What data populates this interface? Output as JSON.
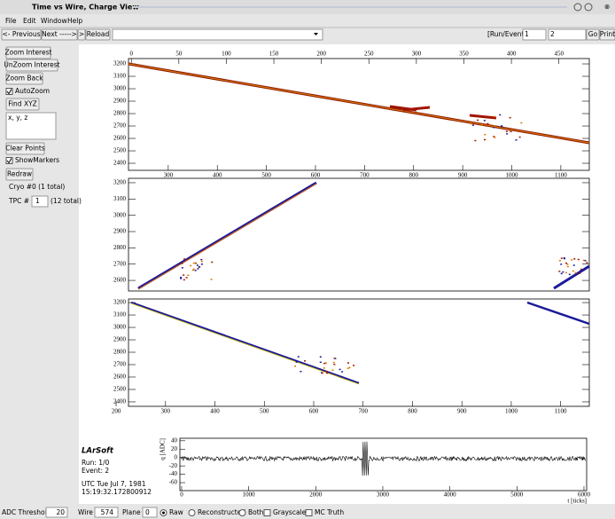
{
  "window": {
    "title": "Time vs Wire, Charge View"
  },
  "menu": [
    "File",
    "Edit",
    "Window",
    "Help"
  ],
  "toolbar": {
    "previous": "<- Previous",
    "next": "Next ----->",
    "forward": ">",
    "reload": "Reload",
    "run_event_label": "[Run/Event]=",
    "run": "1",
    "event": "2",
    "go": "Go",
    "print": "Print"
  },
  "side_panel": {
    "zoom_interest": "Zoom Interest",
    "unzoom_interest": "UnZoom Interest",
    "zoom_back": "Zoom Back",
    "auto_zoom": "AutoZoom",
    "find_xyz": "Find XYZ",
    "xyz_text": "x, y, z",
    "clear_points": "Clear Points",
    "show_markers": "ShowMarkers",
    "redraw": "Redraw",
    "cryo": "Cryo #0 (1 total)",
    "tpc_label": "TPC #",
    "tpc": "1",
    "tpc_total": "(12 total)"
  },
  "views": [
    {
      "xlim_top": [
        -3,
        482
      ],
      "xticks_top": [
        0,
        50,
        100,
        150,
        200,
        250,
        300,
        350,
        400,
        450
      ],
      "xlim": [
        219,
        1158
      ],
      "xticks": [
        300,
        400,
        500,
        600,
        700,
        800,
        900,
        1000,
        1100
      ],
      "ylim": [
        2343,
        3243
      ],
      "yticks": [
        2400,
        2500,
        2600,
        2700,
        2800,
        2900,
        3000,
        3100,
        3200
      ]
    },
    {
      "ylim": [
        2535,
        3227
      ],
      "yticks": [
        2600,
        2700,
        2800,
        2900,
        3000,
        3100,
        3200
      ]
    },
    {
      "xlim": [
        225,
        1158
      ],
      "xticks": [
        200,
        300,
        400,
        500,
        600,
        700,
        800,
        900,
        1000,
        1100
      ],
      "ylim": [
        2364,
        3229
      ],
      "yticks": [
        2400,
        2500,
        2600,
        2700,
        2800,
        2900,
        3000,
        3100,
        3200
      ]
    }
  ],
  "event_info": {
    "software": "LArSoft",
    "run": "Run:   1/0",
    "event": "Event: 2",
    "date": "UTC Tue Jul 7, 1981",
    "time": "15:19:32.172800912"
  },
  "waveform": {
    "xlabel": "t [ticks]",
    "ylabel": "q [ADC]",
    "xlim": [
      -26,
      6040
    ],
    "xticks": [
      0,
      1000,
      2000,
      3000,
      4000,
      5000,
      6000
    ],
    "ylim": [
      -79,
      46
    ],
    "yticks": [
      -60,
      -40,
      -20,
      0,
      20,
      40
    ]
  },
  "bottom_bar": {
    "adc_threshold_label": "ADC Threshold",
    "adc_threshold": "20",
    "wire_label": "Wire",
    "wire": "574",
    "plane_label": "Plane",
    "plane": "0",
    "raw": "Raw",
    "reconstructed": "Reconstructed",
    "both": "Both",
    "grayscale": "Grayscale",
    "mc_truth": "MC Truth"
  }
}
